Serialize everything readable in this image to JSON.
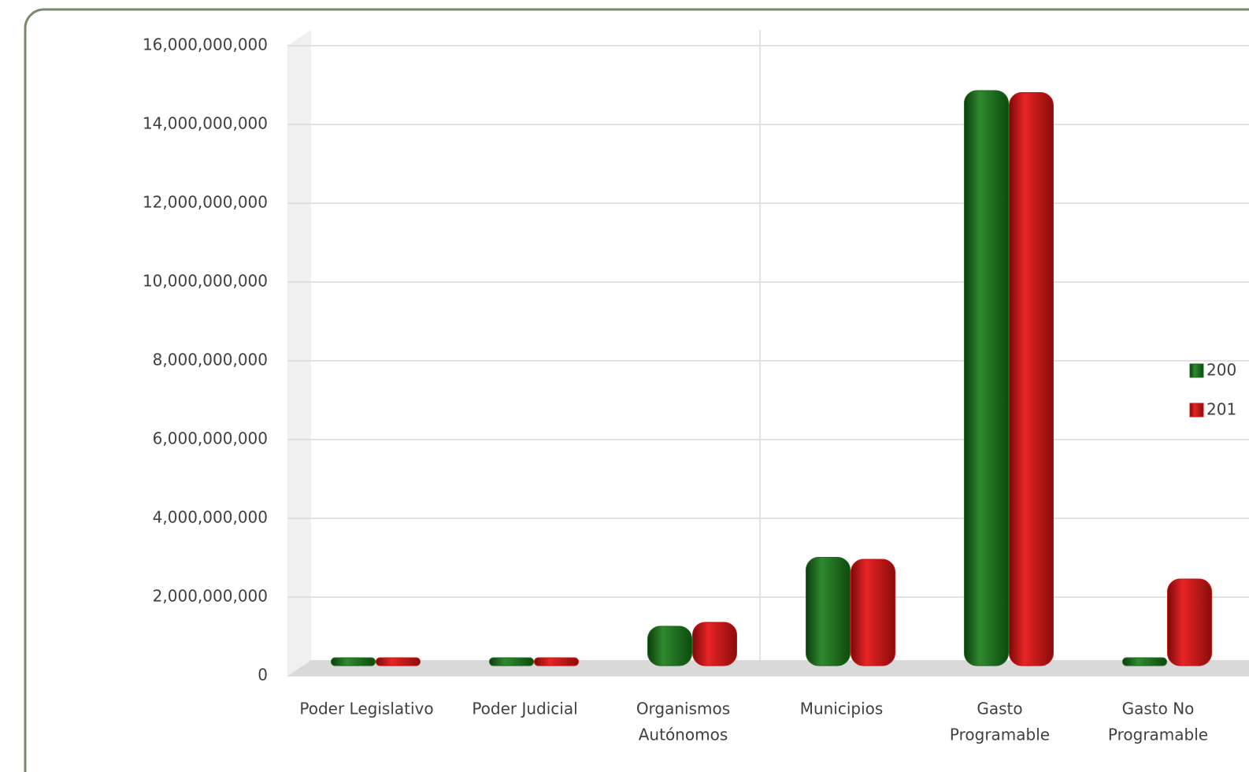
{
  "chart_data": {
    "type": "bar",
    "categories": [
      [
        "Poder Legislativo"
      ],
      [
        "Poder Judicial"
      ],
      [
        "Organismos",
        "Autónomos"
      ],
      [
        "Municipios"
      ],
      [
        "Gasto",
        "Programable"
      ],
      [
        "Gasto No",
        "Programable"
      ]
    ],
    "series": [
      {
        "name": "200",
        "color": "#1e6b1e",
        "values": [
          200000000,
          220000000,
          1500000000,
          3250000000,
          15100000000,
          600000000
        ]
      },
      {
        "name": "201",
        "color": "#c81414",
        "values": [
          220000000,
          240000000,
          1600000000,
          3200000000,
          15050000000,
          2700000000
        ]
      }
    ],
    "ylim": [
      0,
      16000000000
    ],
    "yticks": [
      0,
      {
        "value": 2000000000,
        "label": "2,000,000,000"
      },
      {
        "value": 4000000000,
        "label": "4,000,000,000"
      },
      {
        "value": 6000000000,
        "label": "6,000,000,000"
      },
      {
        "value": 8000000000,
        "label": "8,000,000,000"
      },
      {
        "value": 10000000000,
        "label": "10,000,000,000"
      },
      {
        "value": 12000000000,
        "label": "12,000,000,000"
      },
      {
        "value": 14000000000,
        "label": "14,000,000,000"
      },
      {
        "value": 16000000000,
        "label": "16,000,000,000"
      }
    ],
    "grid": true
  }
}
